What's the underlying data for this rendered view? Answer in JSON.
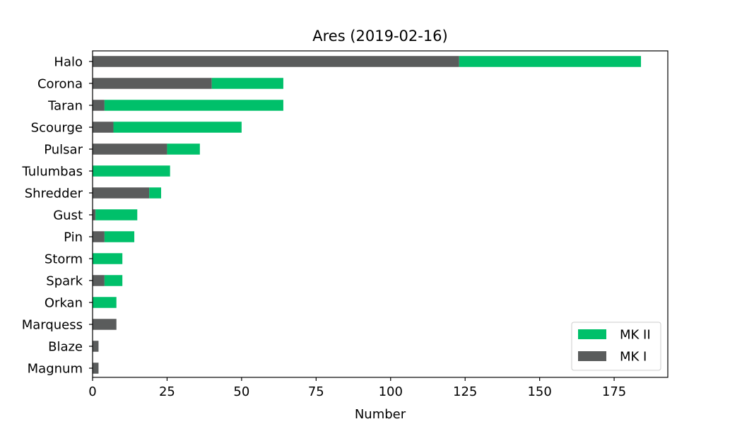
{
  "chart_data": {
    "type": "bar",
    "orientation": "horizontal",
    "stacked": true,
    "title": "Ares (2019-02-16)",
    "xlabel": "Number",
    "ylabel": "",
    "xlim": [
      0,
      193
    ],
    "xticks": [
      0,
      25,
      50,
      75,
      100,
      125,
      150,
      175
    ],
    "grid": false,
    "legend_position": "lower-right",
    "categories": [
      "Halo",
      "Corona",
      "Taran",
      "Scourge",
      "Pulsar",
      "Tulumbas",
      "Shredder",
      "Gust",
      "Pin",
      "Storm",
      "Spark",
      "Orkan",
      "Marquess",
      "Blaze",
      "Magnum"
    ],
    "series": [
      {
        "name": "MK I",
        "color": "#5a5c5c",
        "values": [
          123,
          40,
          4,
          7,
          25,
          0,
          19,
          1,
          4,
          0,
          4,
          0,
          8,
          2,
          2
        ]
      },
      {
        "name": "MK II",
        "color": "#00c06a",
        "values": [
          61,
          24,
          60,
          43,
          11,
          26,
          4,
          14,
          10,
          10,
          6,
          8,
          0,
          0,
          0
        ]
      }
    ],
    "legend_order": [
      "MK II",
      "MK I"
    ]
  }
}
